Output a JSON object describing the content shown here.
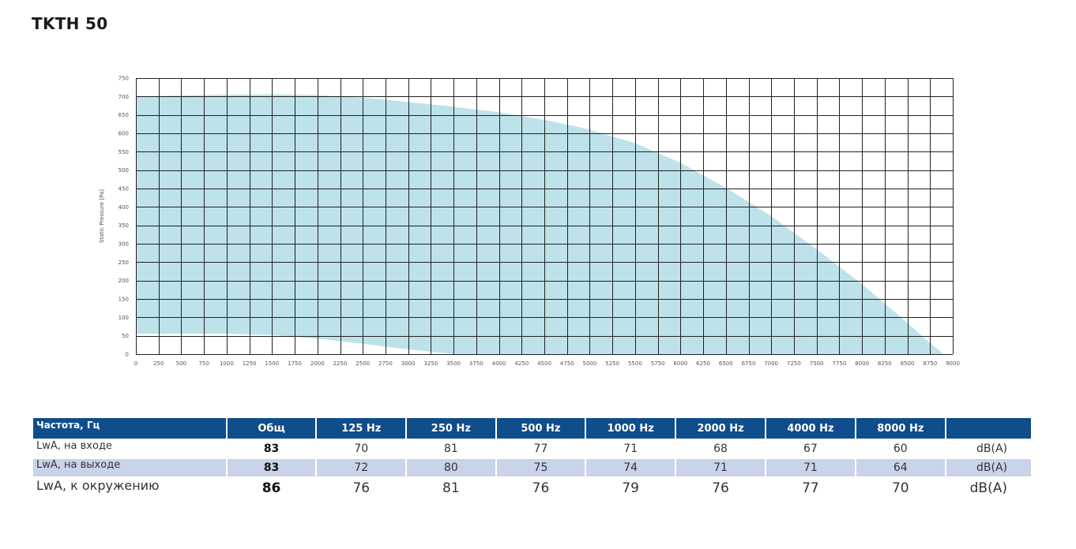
{
  "page": {
    "title": "TKTH 50"
  },
  "chart_data": {
    "type": "area",
    "title": "",
    "xlabel": "",
    "ylabel": "Static Pressure [Pa]",
    "xlim": [
      0,
      9000
    ],
    "ylim": [
      0,
      750
    ],
    "x_ticks": [
      "0",
      "250",
      "500",
      "750",
      "1000",
      "1250",
      "1500",
      "1750",
      "2000",
      "2250",
      "2500",
      "2750",
      "3000",
      "3250",
      "3500",
      "3750",
      "4000",
      "4250",
      "4500",
      "4750",
      "5000",
      "5250",
      "5500",
      "5750",
      "6000",
      "6250",
      "6500",
      "6750",
      "7000",
      "7250",
      "7500",
      "7750",
      "8000",
      "8250",
      "8500",
      "8750",
      "9000"
    ],
    "y_ticks": [
      "0",
      "50",
      "100",
      "150",
      "200",
      "250",
      "300",
      "350",
      "400",
      "450",
      "500",
      "550",
      "600",
      "650",
      "700",
      "750"
    ],
    "grid": true,
    "color": "#bde2ea",
    "series": [
      {
        "upper": [
          [
            0,
            700
          ],
          [
            500,
            703
          ],
          [
            1000,
            705
          ],
          [
            1500,
            706
          ],
          [
            2000,
            704
          ],
          [
            2500,
            697
          ],
          [
            3000,
            685
          ],
          [
            3500,
            672
          ],
          [
            4000,
            657
          ],
          [
            4500,
            637
          ],
          [
            5000,
            610
          ],
          [
            5500,
            573
          ],
          [
            6000,
            520
          ],
          [
            6500,
            452
          ],
          [
            7000,
            375
          ],
          [
            7500,
            285
          ],
          [
            8000,
            190
          ],
          [
            8500,
            85
          ],
          [
            8750,
            30
          ],
          [
            8900,
            0
          ]
        ],
        "lower": [
          [
            8900,
            0
          ],
          [
            3500,
            0
          ],
          [
            3000,
            13
          ],
          [
            2500,
            28
          ],
          [
            2000,
            42
          ],
          [
            1500,
            52
          ],
          [
            1000,
            55
          ],
          [
            500,
            55
          ],
          [
            0,
            55
          ]
        ]
      }
    ]
  },
  "sound_table": {
    "header": {
      "label": "Частота, Гц",
      "total": "Общ",
      "bands": [
        "125 Hz",
        "250 Hz",
        "500 Hz",
        "1000 Hz",
        "2000 Hz",
        "4000 Hz",
        "8000 Hz"
      ],
      "unit": ""
    },
    "rows": [
      {
        "label": "LwA, на входе",
        "total": "83",
        "values": [
          "70",
          "81",
          "77",
          "71",
          "68",
          "67",
          "60"
        ],
        "unit": "dB(A)"
      },
      {
        "label": "LwA, на выходе",
        "total": "83",
        "values": [
          "72",
          "80",
          "75",
          "74",
          "71",
          "71",
          "64"
        ],
        "unit": "dB(A)"
      },
      {
        "label": "LwA, к окружению",
        "total": "86",
        "values": [
          "76",
          "81",
          "76",
          "79",
          "76",
          "77",
          "70"
        ],
        "unit": "dB(A)"
      }
    ]
  }
}
